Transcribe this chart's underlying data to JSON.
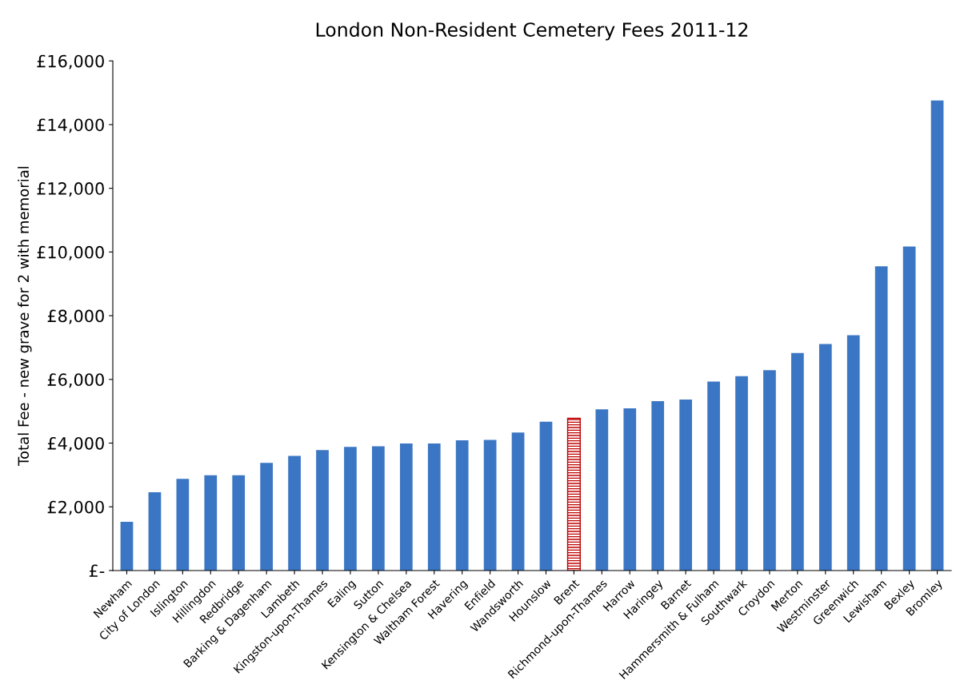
{
  "chart_data": {
    "type": "bar",
    "title": "London Non-Resident Cemetery Fees 2011-12",
    "ylabel": "Total Fee - new grave for 2 with memorial",
    "categories": [
      "Newham",
      "City of London",
      "Islington",
      "Hillingdon",
      "Redbridge",
      "Barking & Dagenham",
      "Lambeth",
      "Kingston-upon-Thames",
      "Ealing",
      "Sutton",
      "Kensington & Chelsea",
      "Waltham Forest",
      "Havering",
      "Enfield",
      "Wandsworth",
      "Hounslow",
      "Brent",
      "Richmond-upon-Thames",
      "Harrow",
      "Haringey",
      "Barnet",
      "Hammersmith & Fulham",
      "Southwark",
      "Croydon",
      "Merton",
      "Westminster",
      "Greenwich",
      "Lewisham",
      "Bexley",
      "Bromley"
    ],
    "values": [
      1530,
      2460,
      2880,
      2990,
      2990,
      3380,
      3600,
      3780,
      3880,
      3900,
      3990,
      3990,
      4090,
      4100,
      4330,
      4670,
      4780,
      5060,
      5090,
      5320,
      5370,
      5930,
      6100,
      6290,
      6830,
      7110,
      7390,
      9550,
      10170,
      14760
    ],
    "colors": [
      "#3b76c4",
      "#3b76c4",
      "#3b76c4",
      "#3b76c4",
      "#3b76c4",
      "#3b76c4",
      "#3b76c4",
      "#3b76c4",
      "#3b76c4",
      "#3b76c4",
      "#3b76c4",
      "#3b76c4",
      "#3b76c4",
      "#3b76c4",
      "#3b76c4",
      "#3b76c4",
      "#c00000",
      "#3b76c4",
      "#3b76c4",
      "#3b76c4",
      "#3b76c4",
      "#3b76c4",
      "#3b76c4",
      "#3b76c4",
      "#3b76c4",
      "#3b76c4",
      "#3b76c4",
      "#3b76c4",
      "#3b76c4",
      "#3b76c4"
    ],
    "ylim": [
      0,
      16000
    ],
    "yticks": [
      {
        "value": 0,
        "label": "£-"
      },
      {
        "value": 2000,
        "label": "£2,000"
      },
      {
        "value": 4000,
        "label": "£4,000"
      },
      {
        "value": 6000,
        "label": "£6,000"
      },
      {
        "value": 8000,
        "label": "£8,000"
      },
      {
        "value": 10000,
        "label": "£10,000"
      },
      {
        "value": 12000,
        "label": "£12,000"
      },
      {
        "value": 14000,
        "label": "£14,000"
      },
      {
        "value": 16000,
        "label": "£16,000"
      }
    ],
    "grid": false,
    "legend": false
  }
}
